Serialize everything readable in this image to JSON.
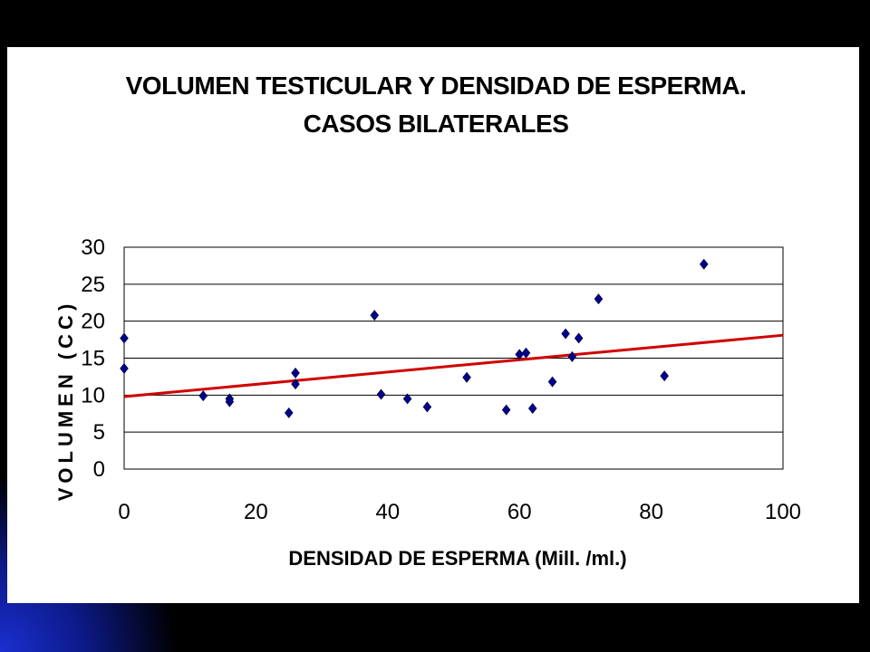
{
  "slide": {
    "accent_colors": {
      "background": "#000000",
      "glow": "#1a2fd0",
      "panel": "#ffffff"
    }
  },
  "chart_data": {
    "type": "scatter",
    "title": "VOLUMEN TESTICULAR Y DENSIDAD DE ESPERMA.",
    "subtitle": "CASOS BILATERALES",
    "xlabel": "DENSIDAD DE ESPERMA (Mill. /ml.)",
    "ylabel": "VOLUMEN (CC)",
    "xlim": [
      0,
      100
    ],
    "ylim": [
      0,
      30
    ],
    "xticks": [
      "0",
      "20",
      "40",
      "60",
      "80",
      "100"
    ],
    "yticks": [
      "0",
      "5",
      "10",
      "15",
      "20",
      "25",
      "30"
    ],
    "grid": "horizontal",
    "legend": "none",
    "marker_color": "#00008b",
    "trendline_color": "#d00000",
    "series": [
      {
        "points": [
          [
            0,
            17.7
          ],
          [
            0,
            13.6
          ],
          [
            12,
            9.9
          ],
          [
            16,
            9.5
          ],
          [
            16,
            9.1
          ],
          [
            25,
            7.6
          ],
          [
            26,
            13.0
          ],
          [
            26,
            11.5
          ],
          [
            38,
            20.8
          ],
          [
            39,
            10.1
          ],
          [
            43,
            9.5
          ],
          [
            46,
            8.4
          ],
          [
            52,
            12.4
          ],
          [
            58,
            8.0
          ],
          [
            60,
            15.5
          ],
          [
            61,
            15.7
          ],
          [
            62,
            8.2
          ],
          [
            65,
            11.8
          ],
          [
            67,
            18.3
          ],
          [
            68,
            15.2
          ],
          [
            69,
            17.7
          ],
          [
            72,
            23.0
          ],
          [
            82,
            12.6
          ],
          [
            88,
            27.7
          ]
        ]
      }
    ],
    "trendline": {
      "x": [
        0,
        100
      ],
      "y": [
        9.8,
        18.1
      ]
    }
  }
}
